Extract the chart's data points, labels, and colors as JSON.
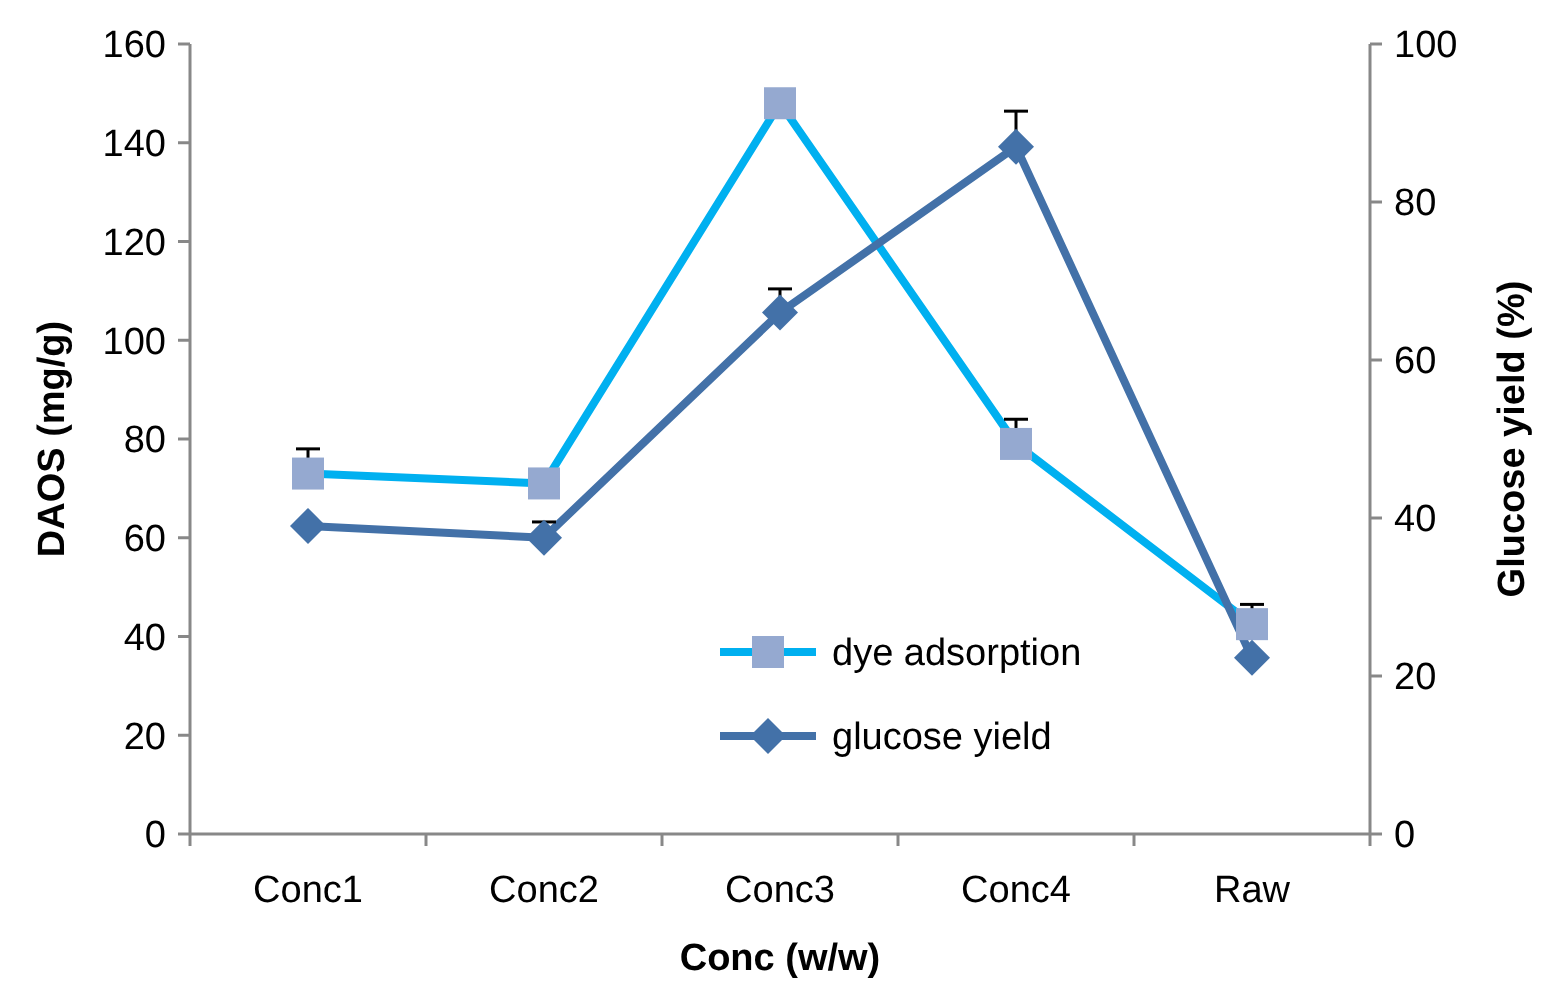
{
  "chart_data": {
    "type": "line",
    "xlabel": "Conc (w/w)",
    "ylabel": "DAOS (mg/g)",
    "y2label": "Glucose yield (%)",
    "categories": [
      "Conc1",
      "Conc2",
      "Conc3",
      "Conc4",
      "Raw"
    ],
    "series": [
      {
        "name": "dye adsorption",
        "color": "#00b0f0",
        "values": [
          73,
          71,
          148,
          79,
          42.5
        ],
        "errors": [
          [
            73,
            78
          ],
          null,
          null,
          [
            79,
            84
          ],
          [
            42.5,
            46.5
          ]
        ],
        "marker": "square"
      },
      {
        "name": "glucose yield",
        "color": "#4371a8",
        "values": [
          39,
          37.5,
          66,
          87,
          22.3
        ],
        "errors": [
          null,
          [
            37.5,
            39.5
          ],
          [
            66,
            69
          ],
          [
            87,
            91.5
          ],
          null
        ],
        "marker": "diamond",
        "axis": "y2"
      }
    ],
    "ylim": [
      0,
      160
    ],
    "yticks": [
      0,
      20,
      40,
      60,
      80,
      100,
      120,
      140,
      160
    ],
    "y2lim": [
      0,
      100
    ],
    "y2ticks": [
      0,
      20,
      40,
      60,
      80,
      100
    ],
    "legend": "bottom right",
    "grid": false,
    "line_style": "solid"
  }
}
